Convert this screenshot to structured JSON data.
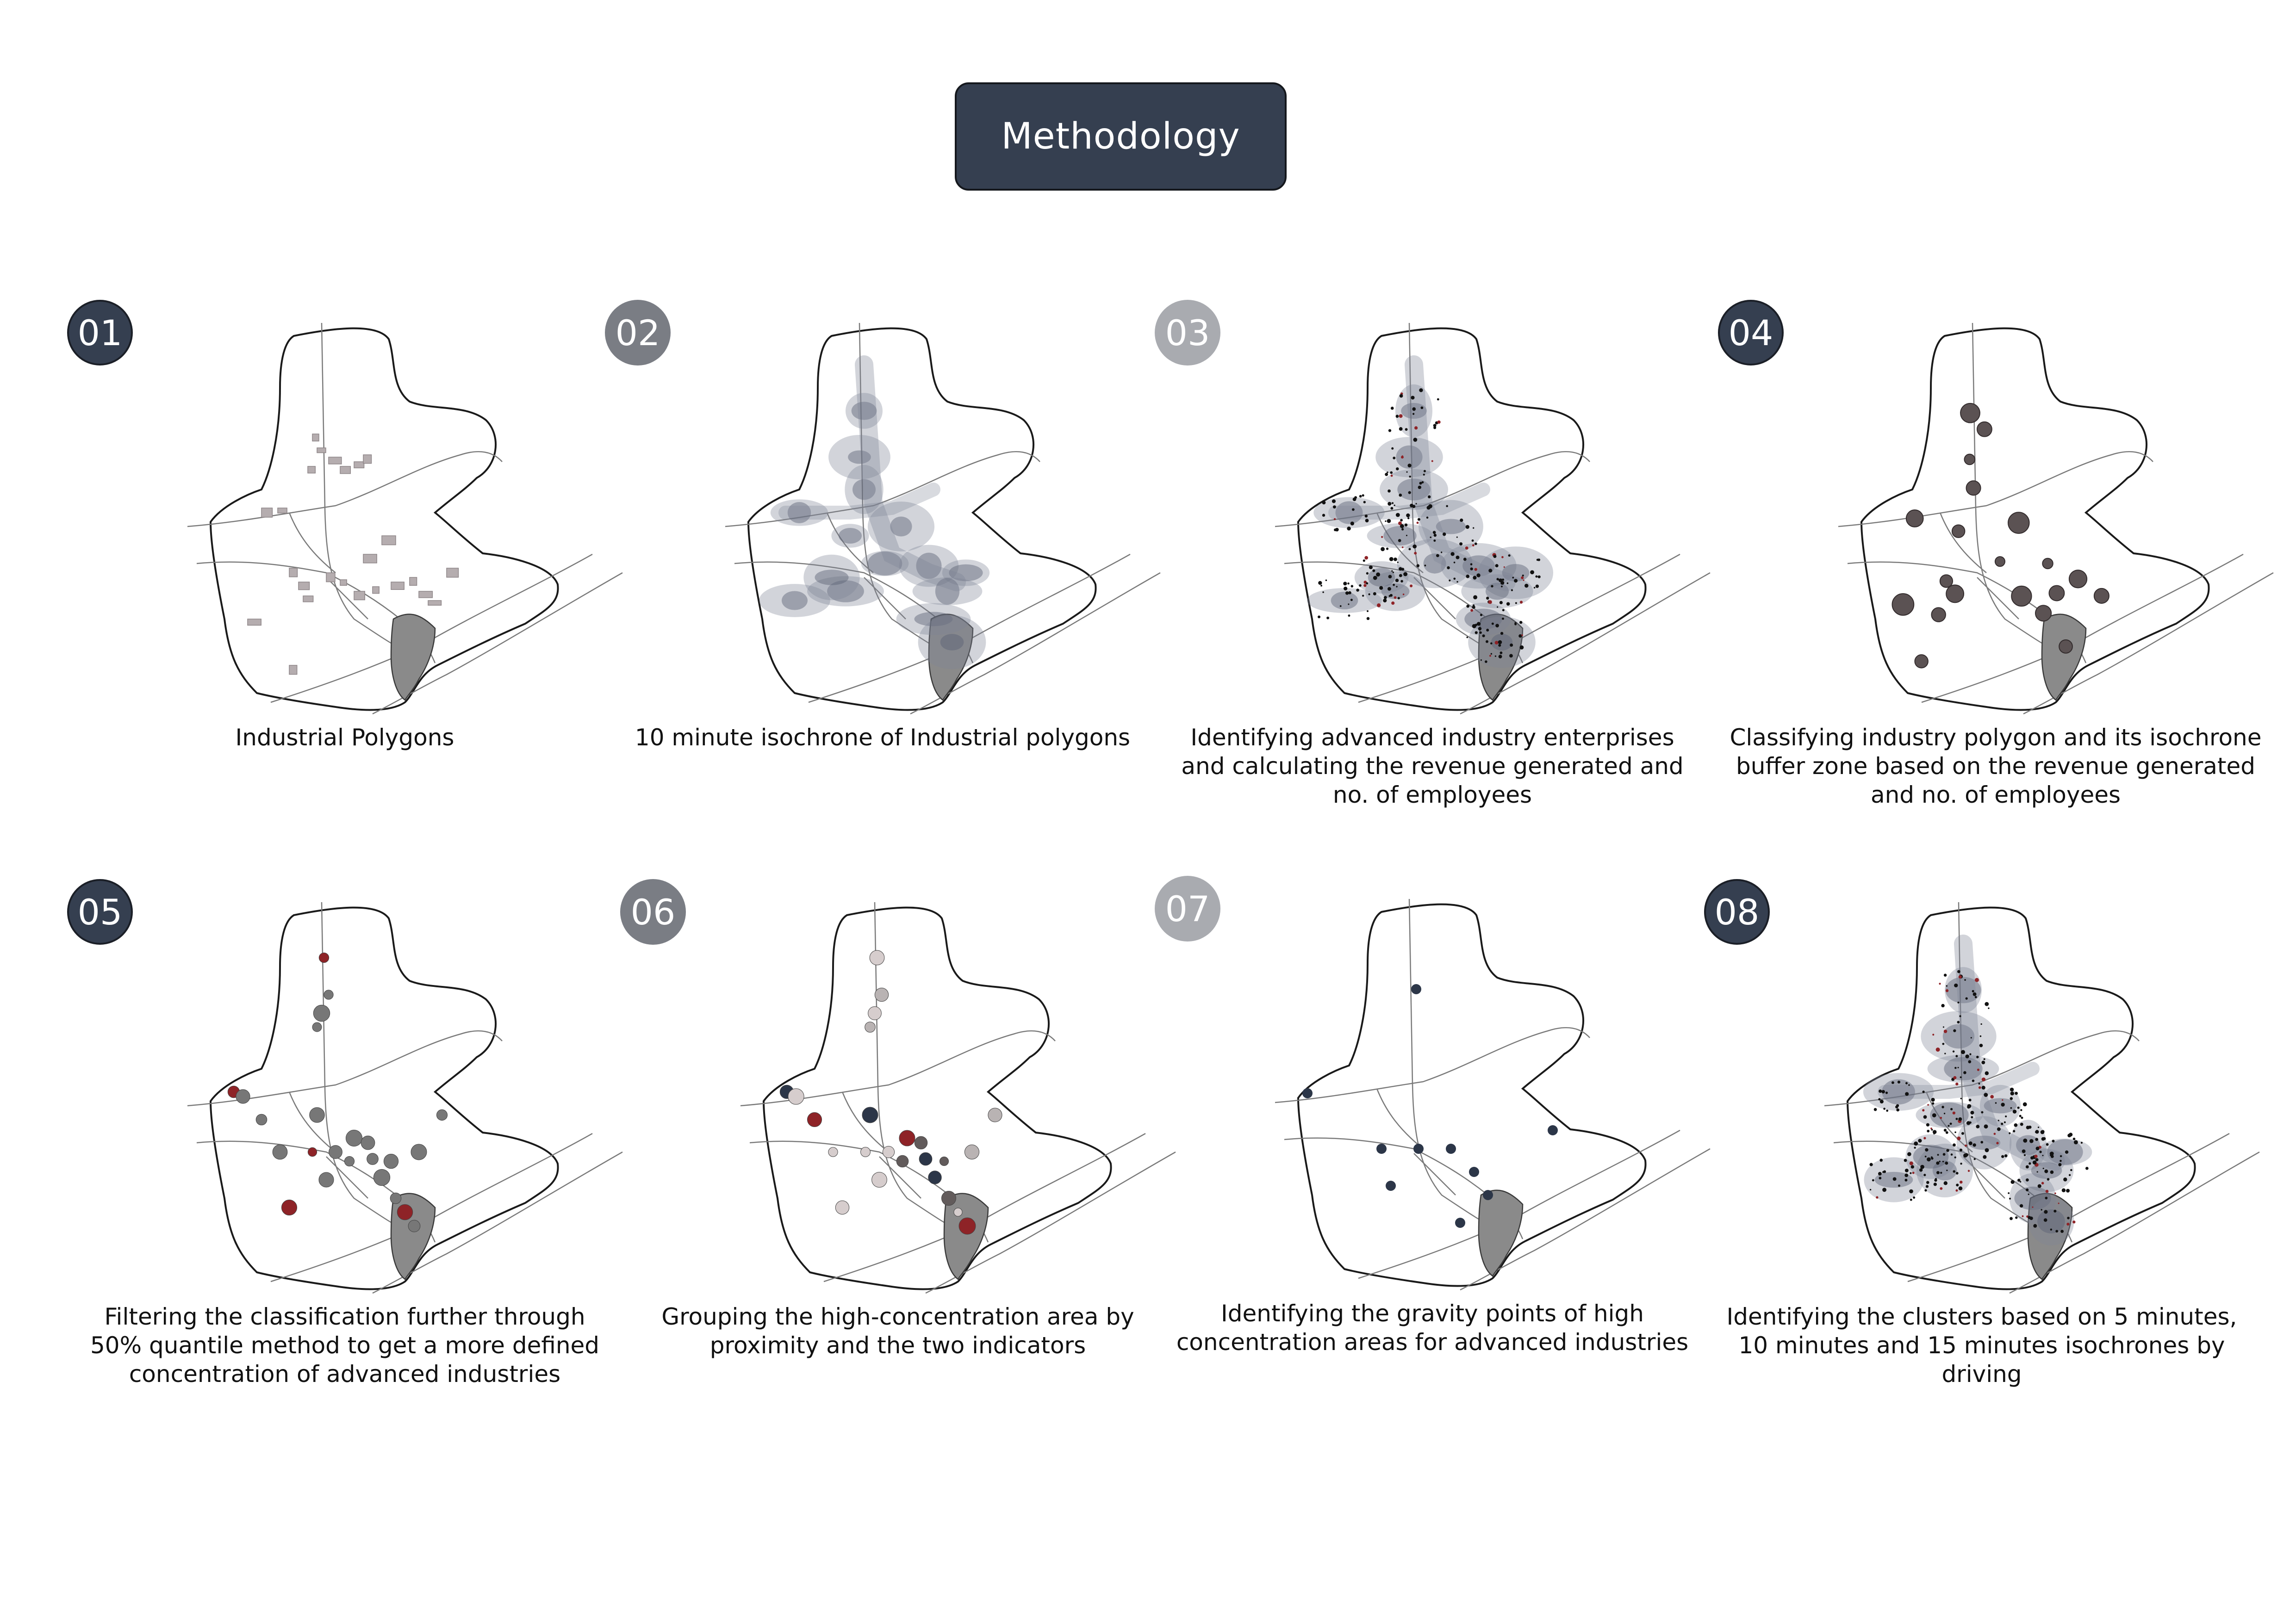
{
  "title": "Methodology",
  "colors": {
    "badge_dark": "#353f50",
    "badge_mid": "#7a7d84",
    "badge_light": "#a9abb0",
    "accent_red": "#8e2327",
    "cluster_navy": "#2c3648",
    "isochrone_grey": "#7d8496",
    "point_grey": "#5c5c5c"
  },
  "steps": [
    {
      "number": "01",
      "caption": "Industrial Polygons"
    },
    {
      "number": "02",
      "caption": "10 minute isochrone of Industrial polygons"
    },
    {
      "number": "03",
      "caption": "Identifying advanced industry enterprises\nand calculating the revenue generated and\nno. of employees"
    },
    {
      "number": "04",
      "caption": "Classifying industry polygon and its isochrone\nbuffer zone based on the revenue generated\nand no. of employees"
    },
    {
      "number": "05",
      "caption": "Filtering the classification further through\n50% quantile method to get a more defined\nconcentration of advanced industries"
    },
    {
      "number": "06",
      "caption": "Grouping the high-concentration area by\nproximity and the two indicators"
    },
    {
      "number": "07",
      "caption": "Identifying the gravity points of high\nconcentration areas for advanced industries"
    },
    {
      "number": "08",
      "caption": "Identifying the clusters based on 5 minutes,\n10 minutes and 15 minutes isochrones by\ndriving"
    }
  ]
}
